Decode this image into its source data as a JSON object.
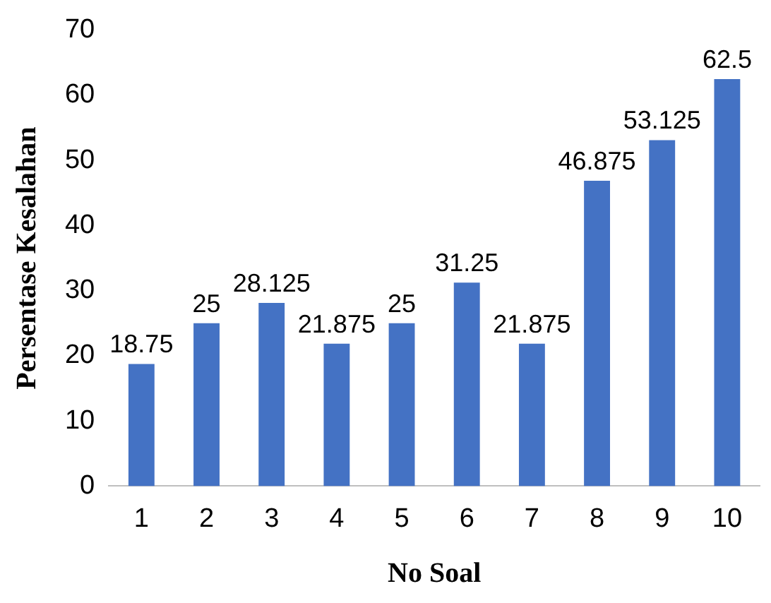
{
  "chart_data": {
    "type": "bar",
    "xlabel": "No Soal",
    "ylabel": "Persentase Kesalahan",
    "categories": [
      "1",
      "2",
      "3",
      "4",
      "5",
      "6",
      "7",
      "8",
      "9",
      "10"
    ],
    "values": [
      18.75,
      25,
      28.125,
      21.875,
      25,
      31.25,
      21.875,
      46.875,
      53.125,
      62.5
    ],
    "color": "#4472c4",
    "ylim": [
      0,
      70
    ],
    "yticks": [
      0,
      10,
      20,
      30,
      40,
      50,
      60,
      70
    ],
    "grid": false,
    "legend": false,
    "data_labels": true
  }
}
